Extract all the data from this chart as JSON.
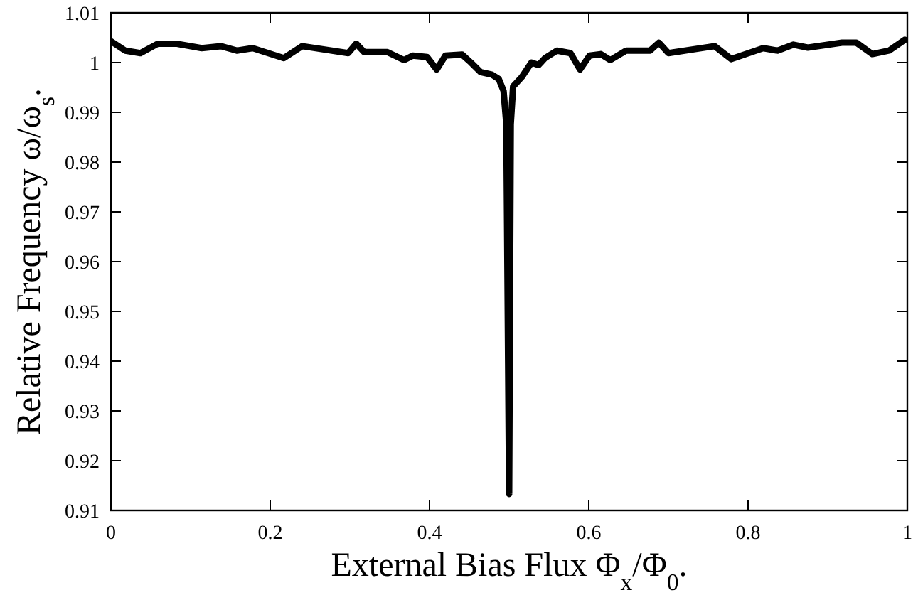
{
  "chart_data": {
    "type": "line",
    "xlabel": "External Bias Flux Φ$_{x}$/Φ$_{0}$.",
    "ylabel": "Relative Frequency ω/ω$_{s}$.",
    "xlim": [
      0,
      1
    ],
    "xticks": [
      0,
      0.2,
      0.4,
      0.6,
      0.8,
      1
    ],
    "ylim": [
      0.91,
      1.01
    ],
    "yticks": [
      0.91,
      0.92,
      0.93,
      0.94,
      0.95,
      0.96,
      0.97,
      0.98,
      0.99,
      1,
      1.01
    ],
    "grid": false,
    "marker": "none",
    "line_style": "solid",
    "series": [
      {
        "color": "#000000",
        "x": [
          0,
          0.018,
          0.037,
          0.059,
          0.082,
          0.114,
          0.138,
          0.158,
          0.178,
          0.217,
          0.24,
          0.298,
          0.308,
          0.318,
          0.347,
          0.368,
          0.379,
          0.397,
          0.409,
          0.42,
          0.441,
          0.452,
          0.464,
          0.478,
          0.487,
          0.493,
          0.4965,
          0.5,
          0.502,
          0.505,
          0.516,
          0.528,
          0.537,
          0.545,
          0.56,
          0.577,
          0.589,
          0.601,
          0.615,
          0.627,
          0.647,
          0.677,
          0.688,
          0.7,
          0.758,
          0.779,
          0.819,
          0.837,
          0.857,
          0.875,
          0.918,
          0.936,
          0.956,
          0.977,
          0.997
        ],
        "values": [
          1.0043,
          1.0024,
          1.0019,
          1.0038,
          1.0038,
          1.0029,
          1.0033,
          1.0024,
          1.0029,
          1.0009,
          1.0033,
          1.0019,
          1.0038,
          1.0021,
          1.0021,
          1.0005,
          1.0014,
          1.0011,
          0.9986,
          1.0014,
          1.0016,
          1.0,
          0.9981,
          0.9976,
          0.9967,
          0.9943,
          0.9876,
          0.9133,
          0.9876,
          0.9952,
          0.9971,
          1.0,
          0.9995,
          1.0009,
          1.0024,
          1.0019,
          0.9986,
          1.0014,
          1.0017,
          1.0005,
          1.0024,
          1.0024,
          1.004,
          1.0019,
          1.0033,
          1.0007,
          1.0029,
          1.0024,
          1.0036,
          1.003,
          1.004,
          1.004,
          1.0017,
          1.0024,
          1.0046
        ]
      }
    ]
  }
}
